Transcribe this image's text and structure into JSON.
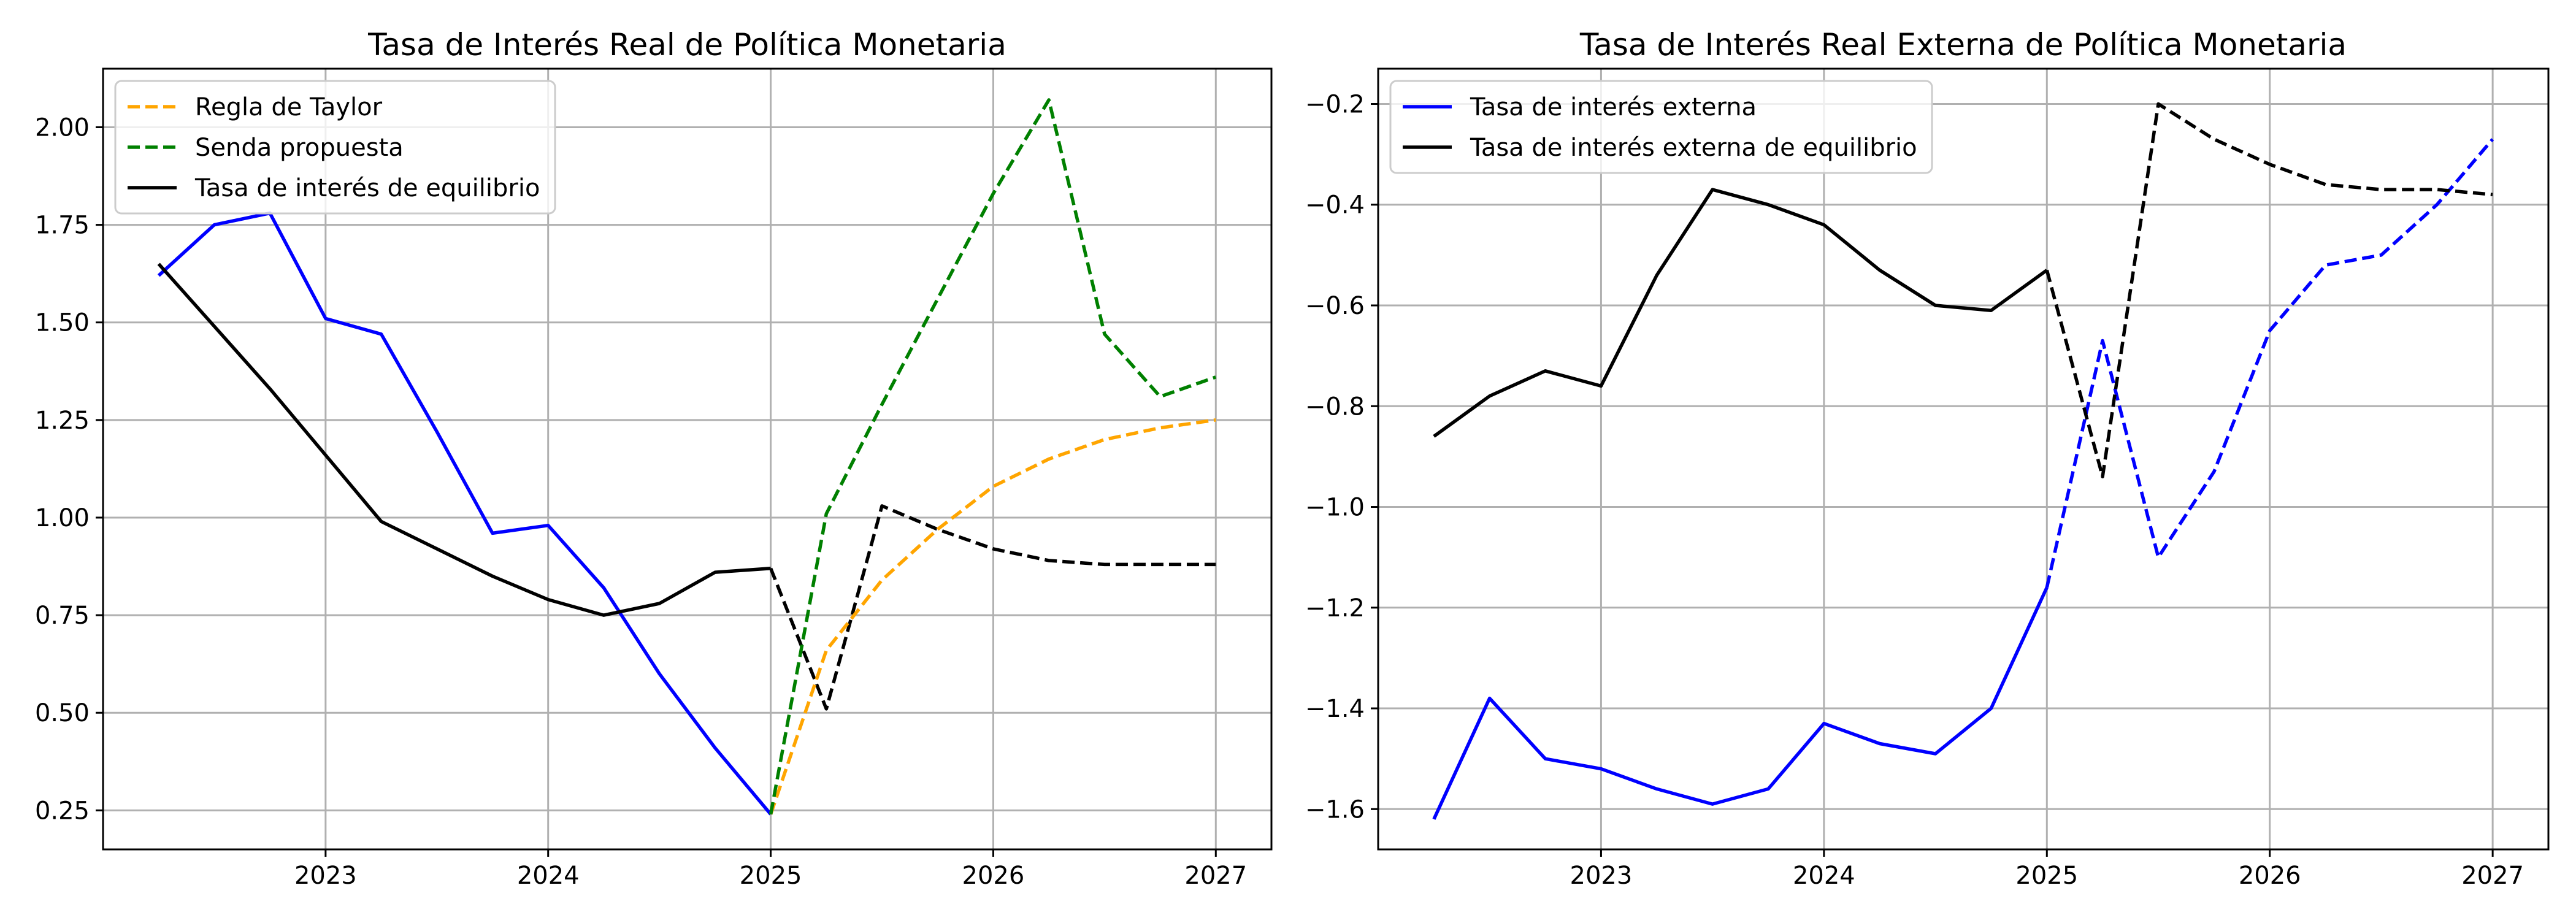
{
  "chart_data": [
    {
      "type": "line",
      "title": "Tasa de Interés Real de Política Monetaria",
      "xlabel": "",
      "ylabel": "",
      "x_ticks": [
        "2023",
        "2024",
        "2025",
        "2026",
        "2027"
      ],
      "y_ticks": [
        "0.25",
        "0.50",
        "0.75",
        "1.00",
        "1.25",
        "1.50",
        "1.75",
        "2.00"
      ],
      "xlim": [
        2022.0,
        2027.25
      ],
      "ylim": [
        0.15,
        2.15
      ],
      "grid": true,
      "legend_position": "top-left",
      "legend": [
        {
          "label": "Regla de Taylor",
          "color": "#ffa500",
          "style": "dashed"
        },
        {
          "label": "Senda propuesta",
          "color": "#008000",
          "style": "dashed"
        },
        {
          "label": "Tasa de interés de equilibrio",
          "color": "#000000",
          "style": "solid"
        }
      ],
      "series": [
        {
          "color": "#0000ff",
          "style": "solid",
          "x": [
            "2022-04",
            "2022-07",
            "2022-10",
            "2023-01",
            "2023-04",
            "2023-07",
            "2023-10",
            "2024-01",
            "2024-04",
            "2024-07",
            "2024-10",
            "2025-01"
          ],
          "values": [
            1.62,
            1.75,
            1.78,
            1.51,
            1.47,
            1.22,
            0.96,
            0.98,
            0.82,
            0.6,
            0.41,
            0.24
          ]
        },
        {
          "color": "#000000",
          "style": "solid",
          "x": [
            "2022-04",
            "2022-07",
            "2022-10",
            "2023-01",
            "2023-04",
            "2023-07",
            "2023-10",
            "2024-01",
            "2024-04",
            "2024-07",
            "2024-10",
            "2025-01"
          ],
          "values": [
            1.65,
            1.49,
            1.33,
            1.16,
            0.99,
            0.92,
            0.85,
            0.79,
            0.75,
            0.78,
            0.86,
            0.87
          ]
        },
        {
          "color": "#000000",
          "style": "dashed",
          "x": [
            "2025-01",
            "2025-04",
            "2025-07",
            "2025-10",
            "2026-01",
            "2026-04",
            "2026-07",
            "2026-10",
            "2027-01"
          ],
          "values": [
            0.87,
            0.51,
            1.03,
            0.97,
            0.92,
            0.89,
            0.88,
            0.88,
            0.88
          ]
        },
        {
          "color": "#ffa500",
          "style": "dashed",
          "x": [
            "2025-01",
            "2025-04",
            "2025-07",
            "2025-10",
            "2026-01",
            "2026-04",
            "2026-07",
            "2026-10",
            "2027-01"
          ],
          "values": [
            0.24,
            0.66,
            0.84,
            0.97,
            1.08,
            1.15,
            1.2,
            1.23,
            1.25
          ]
        },
        {
          "color": "#008000",
          "style": "dashed",
          "x": [
            "2025-01",
            "2025-04",
            "2025-07",
            "2025-10",
            "2026-01",
            "2026-04",
            "2026-07",
            "2026-10",
            "2027-01"
          ],
          "values": [
            0.24,
            1.01,
            1.29,
            1.56,
            1.83,
            2.07,
            1.47,
            1.31,
            1.36
          ]
        }
      ]
    },
    {
      "type": "line",
      "title": "Tasa de Interés Real Externa de Política Monetaria",
      "xlabel": "",
      "ylabel": "",
      "x_ticks": [
        "2023",
        "2024",
        "2025",
        "2026",
        "2027"
      ],
      "y_ticks": [
        "−1.6",
        "−1.4",
        "−1.2",
        "−1.0",
        "−0.8",
        "−0.6",
        "−0.4",
        "−0.2"
      ],
      "xlim": [
        2022.0,
        2027.25
      ],
      "ylim": [
        -1.68,
        -0.13
      ],
      "grid": true,
      "legend_position": "top-left",
      "legend": [
        {
          "label": "Tasa de interés externa",
          "color": "#0000ff",
          "style": "solid"
        },
        {
          "label": "Tasa de interés externa de equilibrio",
          "color": "#000000",
          "style": "solid"
        }
      ],
      "series": [
        {
          "color": "#0000ff",
          "style": "solid",
          "x": [
            "2022-04",
            "2022-07",
            "2022-10",
            "2023-01",
            "2023-04",
            "2023-07",
            "2023-10",
            "2024-01",
            "2024-04",
            "2024-07",
            "2024-10",
            "2025-01"
          ],
          "values": [
            -1.62,
            -1.38,
            -1.5,
            -1.52,
            -1.56,
            -1.59,
            -1.56,
            -1.43,
            -1.47,
            -1.49,
            -1.4,
            -1.16
          ]
        },
        {
          "color": "#0000ff",
          "style": "dashed",
          "x": [
            "2025-01",
            "2025-04",
            "2025-07",
            "2025-10",
            "2026-01",
            "2026-04",
            "2026-07",
            "2026-10",
            "2027-01"
          ],
          "values": [
            -1.16,
            -0.67,
            -1.1,
            -0.93,
            -0.65,
            -0.52,
            -0.5,
            -0.4,
            -0.27
          ]
        },
        {
          "color": "#000000",
          "style": "solid",
          "x": [
            "2022-04",
            "2022-07",
            "2022-10",
            "2023-01",
            "2023-04",
            "2023-07",
            "2023-10",
            "2024-01",
            "2024-04",
            "2024-07",
            "2024-10",
            "2025-01"
          ],
          "values": [
            -0.86,
            -0.78,
            -0.73,
            -0.76,
            -0.54,
            -0.37,
            -0.4,
            -0.44,
            -0.53,
            -0.6,
            -0.61,
            -0.53
          ]
        },
        {
          "color": "#000000",
          "style": "dashed",
          "x": [
            "2025-01",
            "2025-04",
            "2025-07",
            "2025-10",
            "2026-01",
            "2026-04",
            "2026-07",
            "2026-10",
            "2027-01"
          ],
          "values": [
            -0.53,
            -0.94,
            -0.2,
            -0.27,
            -0.32,
            -0.36,
            -0.37,
            -0.37,
            -0.38
          ]
        }
      ]
    }
  ]
}
